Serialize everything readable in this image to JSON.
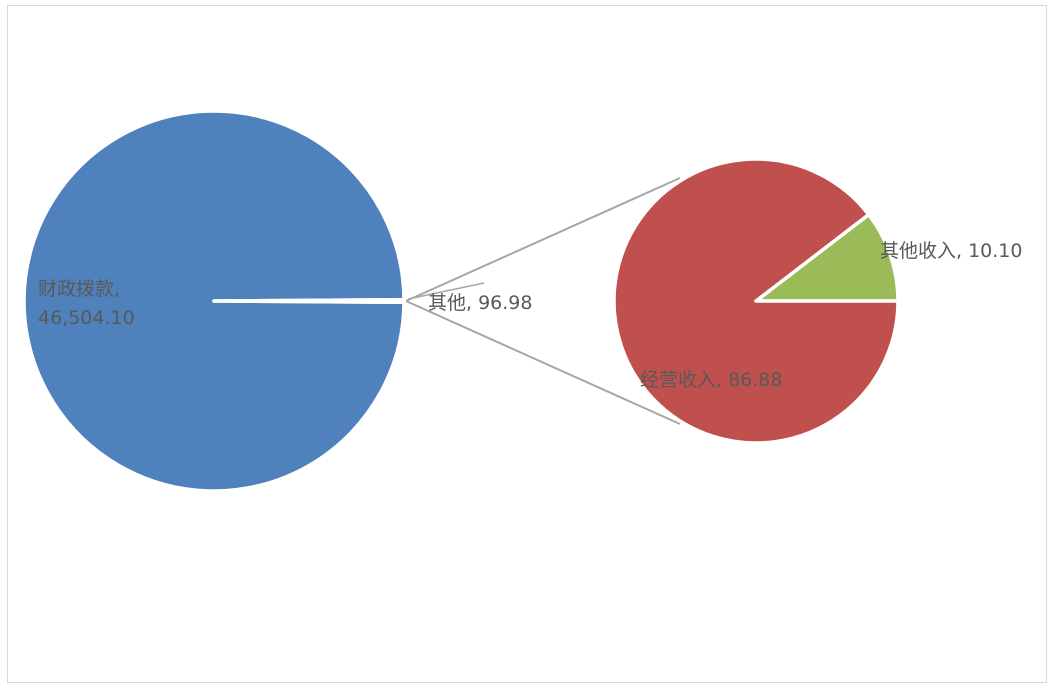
{
  "chart_data": {
    "type": "pie",
    "subtype": "pie-of-pie",
    "title": "",
    "slices": [
      {
        "label": "财政拨款",
        "value": 46504.1,
        "display": "46,504.10",
        "color": "#4f81bd"
      },
      {
        "label": "其他",
        "value": 96.98,
        "display": "96.98",
        "color": "#4f81bd"
      }
    ],
    "secondary_slices": [
      {
        "label": "其他收入",
        "value": 10.1,
        "display": "10.10",
        "color": "#9bbb59"
      },
      {
        "label": "经营收入",
        "value": 86.88,
        "display": "86.88",
        "color": "#c0504d"
      }
    ],
    "connector_color": "#a6a6a6",
    "legend": "none"
  },
  "labels": {
    "main_line1": "财政拨款,",
    "main_line2": "46,504.10",
    "other": "其他, 96.98",
    "other_income": "其他收入, 10.10",
    "operating_income": "经营收入, 86.88"
  }
}
